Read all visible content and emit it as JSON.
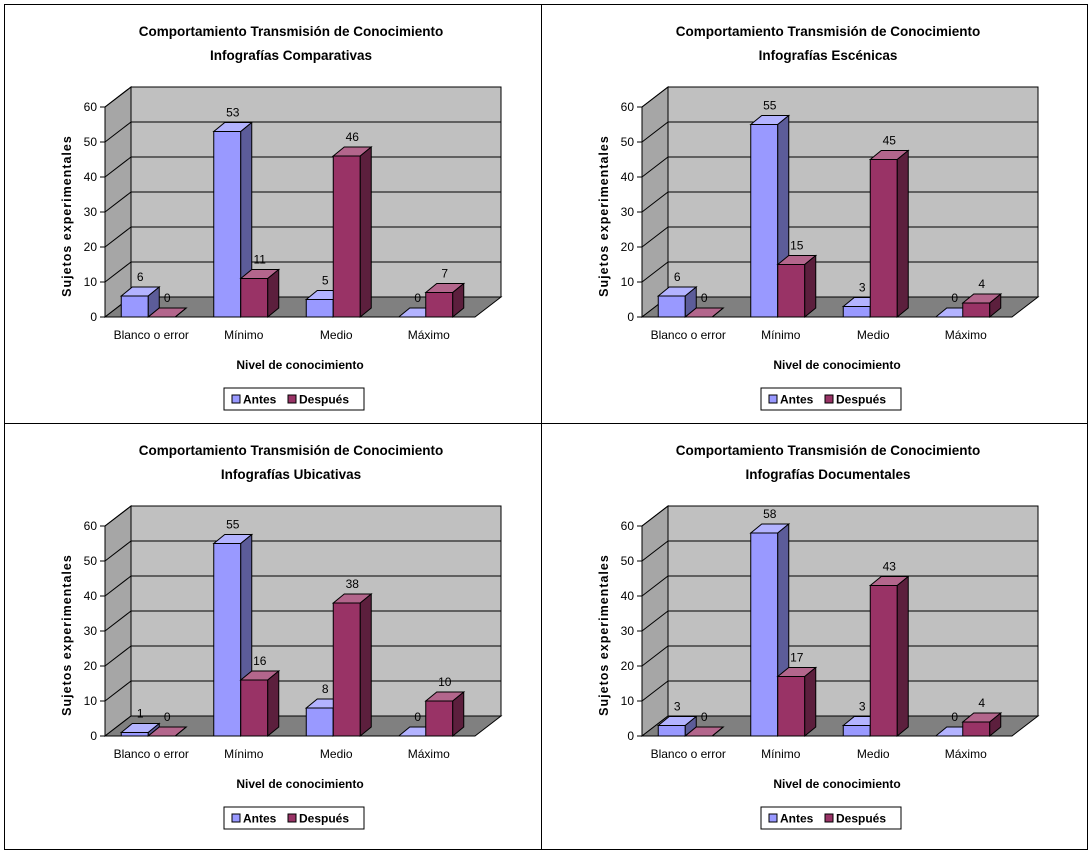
{
  "chart_data": [
    {
      "type": "bar",
      "title": "Comportamiento Transmisión de Conocimiento",
      "subtitle": "Infografías Comparativas",
      "xlabel": "Nivel de conocimiento",
      "ylabel": "Sujetos experimentales",
      "categories": [
        "Blanco o error",
        "Mínimo",
        "Medio",
        "Máximo"
      ],
      "series": [
        {
          "name": "Antes",
          "values": [
            6,
            53,
            5,
            0
          ],
          "color": "#9999ff"
        },
        {
          "name": "Después",
          "values": [
            0,
            11,
            46,
            7
          ],
          "color": "#993366"
        }
      ],
      "ylim": [
        0,
        60
      ],
      "yticks": [
        "0",
        "10",
        "20",
        "30",
        "40",
        "50",
        "60"
      ],
      "grid": true,
      "legend": "bottom"
    },
    {
      "type": "bar",
      "title": "Comportamiento Transmisión de Conocimiento",
      "subtitle": "Infografías Escénicas",
      "xlabel": "Nivel de conocimiento",
      "ylabel": "Sujetos experimentales",
      "categories": [
        "Blanco o error",
        "Mínimo",
        "Medio",
        "Máximo"
      ],
      "series": [
        {
          "name": "Antes",
          "values": [
            6,
            55,
            3,
            0
          ],
          "color": "#9999ff"
        },
        {
          "name": "Después",
          "values": [
            0,
            15,
            45,
            4
          ],
          "color": "#993366"
        }
      ],
      "ylim": [
        0,
        60
      ],
      "yticks": [
        "0",
        "10",
        "20",
        "30",
        "40",
        "50",
        "60"
      ],
      "grid": true,
      "legend": "bottom"
    },
    {
      "type": "bar",
      "title": "Comportamiento Transmisión de Conocimiento",
      "subtitle": "Infografías Ubicativas",
      "xlabel": "Nivel de conocimiento",
      "ylabel": "Sujetos experimentales",
      "categories": [
        "Blanco o error",
        "Mínimo",
        "Medio",
        "Máximo"
      ],
      "series": [
        {
          "name": "Antes",
          "values": [
            1,
            55,
            8,
            0
          ],
          "color": "#9999ff"
        },
        {
          "name": "Después",
          "values": [
            0,
            16,
            38,
            10
          ],
          "color": "#993366"
        }
      ],
      "ylim": [
        0,
        60
      ],
      "yticks": [
        "0",
        "10",
        "20",
        "30",
        "40",
        "50",
        "60"
      ],
      "grid": true,
      "legend": "bottom"
    },
    {
      "type": "bar",
      "title": "Comportamiento Transmisión de Conocimiento",
      "subtitle": "Infografías Documentales",
      "xlabel": "Nivel de conocimiento",
      "ylabel": "Sujetos experimentales",
      "categories": [
        "Blanco o error",
        "Mínimo",
        "Medio",
        "Máximo"
      ],
      "series": [
        {
          "name": "Antes",
          "values": [
            3,
            58,
            3,
            0
          ],
          "color": "#9999ff"
        },
        {
          "name": "Después",
          "values": [
            0,
            17,
            43,
            4
          ],
          "color": "#993366"
        }
      ],
      "ylim": [
        0,
        60
      ],
      "yticks": [
        "0",
        "10",
        "20",
        "30",
        "40",
        "50",
        "60"
      ],
      "grid": true,
      "legend": "bottom"
    }
  ]
}
